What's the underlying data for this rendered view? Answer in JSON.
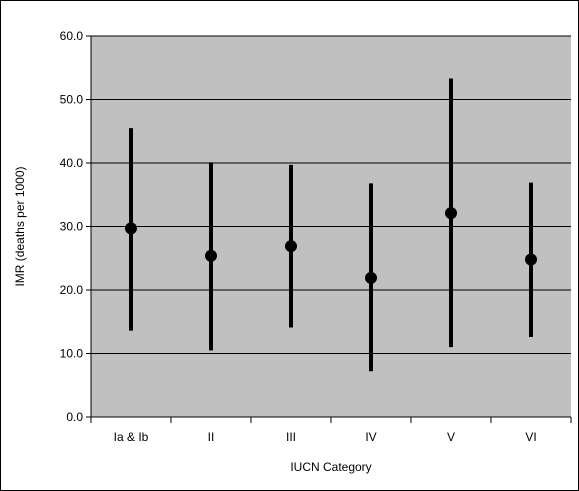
{
  "chart_data": {
    "type": "scatter",
    "xlabel": "IUCN Category",
    "ylabel": "IMR (deaths per 1000)",
    "categories": [
      "Ia & Ib",
      "II",
      "III",
      "IV",
      "V",
      "VI"
    ],
    "ylim": [
      0,
      60
    ],
    "yticks": [
      "0.0",
      "10.0",
      "20.0",
      "30.0",
      "40.0",
      "50.0",
      "60.0"
    ],
    "grid": true,
    "plot_background": "#c0c0c0",
    "series": [
      {
        "values": [
          29.7,
          25.4,
          26.9,
          21.9,
          32.1,
          24.8
        ],
        "lower": [
          13.6,
          10.5,
          14.1,
          7.2,
          11.0,
          12.6
        ],
        "upper": [
          45.5,
          40.1,
          39.7,
          36.8,
          53.3,
          36.9
        ]
      }
    ]
  }
}
